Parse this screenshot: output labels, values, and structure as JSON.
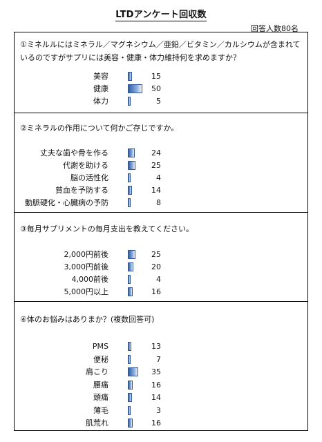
{
  "title": "LTDアンケート回収数",
  "respondents": "回答人数80名",
  "sections": [
    {
      "question": "①ミネルルにはミネラル／マグネシウム／亜鉛／ビタミン／カルシウムが含まれているのですがサプリには美容・健康・体力維持何を求めますか？",
      "items": [
        {
          "label": "美容",
          "value": 15
        },
        {
          "label": "健康",
          "value": 50
        },
        {
          "label": "体力",
          "value": 5
        }
      ]
    },
    {
      "question": "②ミネラルの作用について何かご存じですか。",
      "items": [
        {
          "label": "丈夫な歯や骨を作る",
          "value": 24
        },
        {
          "label": "代謝を助ける",
          "value": 25
        },
        {
          "label": "脳の活性化",
          "value": 4
        },
        {
          "label": "貧血を予防する",
          "value": 14
        },
        {
          "label": "動脈硬化・心臓病の予防",
          "value": 8
        }
      ]
    },
    {
      "question": "③毎月サプリメントの毎月支出を教えてください。",
      "items": [
        {
          "label": "2,000円前後",
          "value": 25
        },
        {
          "label": "3,000円前後",
          "value": 20
        },
        {
          "label": "4,000前後",
          "value": 4
        },
        {
          "label": "5,000円以上",
          "value": 16
        }
      ]
    },
    {
      "question": "④体のお悩みはありまか？(複数回答可)",
      "items": [
        {
          "label": "PMS",
          "value": 13
        },
        {
          "label": "便秘",
          "value": 7
        },
        {
          "label": "肩こり",
          "value": 35
        },
        {
          "label": "腰痛",
          "value": 16
        },
        {
          "label": "頭痛",
          "value": 14
        },
        {
          "label": "薄毛",
          "value": 3
        },
        {
          "label": "肌荒れ",
          "value": 16
        }
      ]
    }
  ],
  "chart_data": [
    {
      "type": "bar",
      "categories": [
        "美容",
        "健康",
        "体力"
      ],
      "values": [
        15,
        50,
        5
      ]
    },
    {
      "type": "bar",
      "categories": [
        "丈夫な歯や骨を作る",
        "代謝を助ける",
        "脳の活性化",
        "貧血を予防する",
        "動脈硬化・心臓病の予防"
      ],
      "values": [
        24,
        25,
        4,
        14,
        8
      ]
    },
    {
      "type": "bar",
      "categories": [
        "2,000円前後",
        "3,000円前後",
        "4,000前後",
        "5,000円以上"
      ],
      "values": [
        25,
        20,
        4,
        16
      ]
    },
    {
      "type": "bar",
      "categories": [
        "PMS",
        "便秘",
        "肩こり",
        "腰痛",
        "頭痛",
        "薄毛",
        "肌荒れ"
      ],
      "values": [
        13,
        7,
        35,
        16,
        14,
        3,
        16
      ]
    }
  ]
}
